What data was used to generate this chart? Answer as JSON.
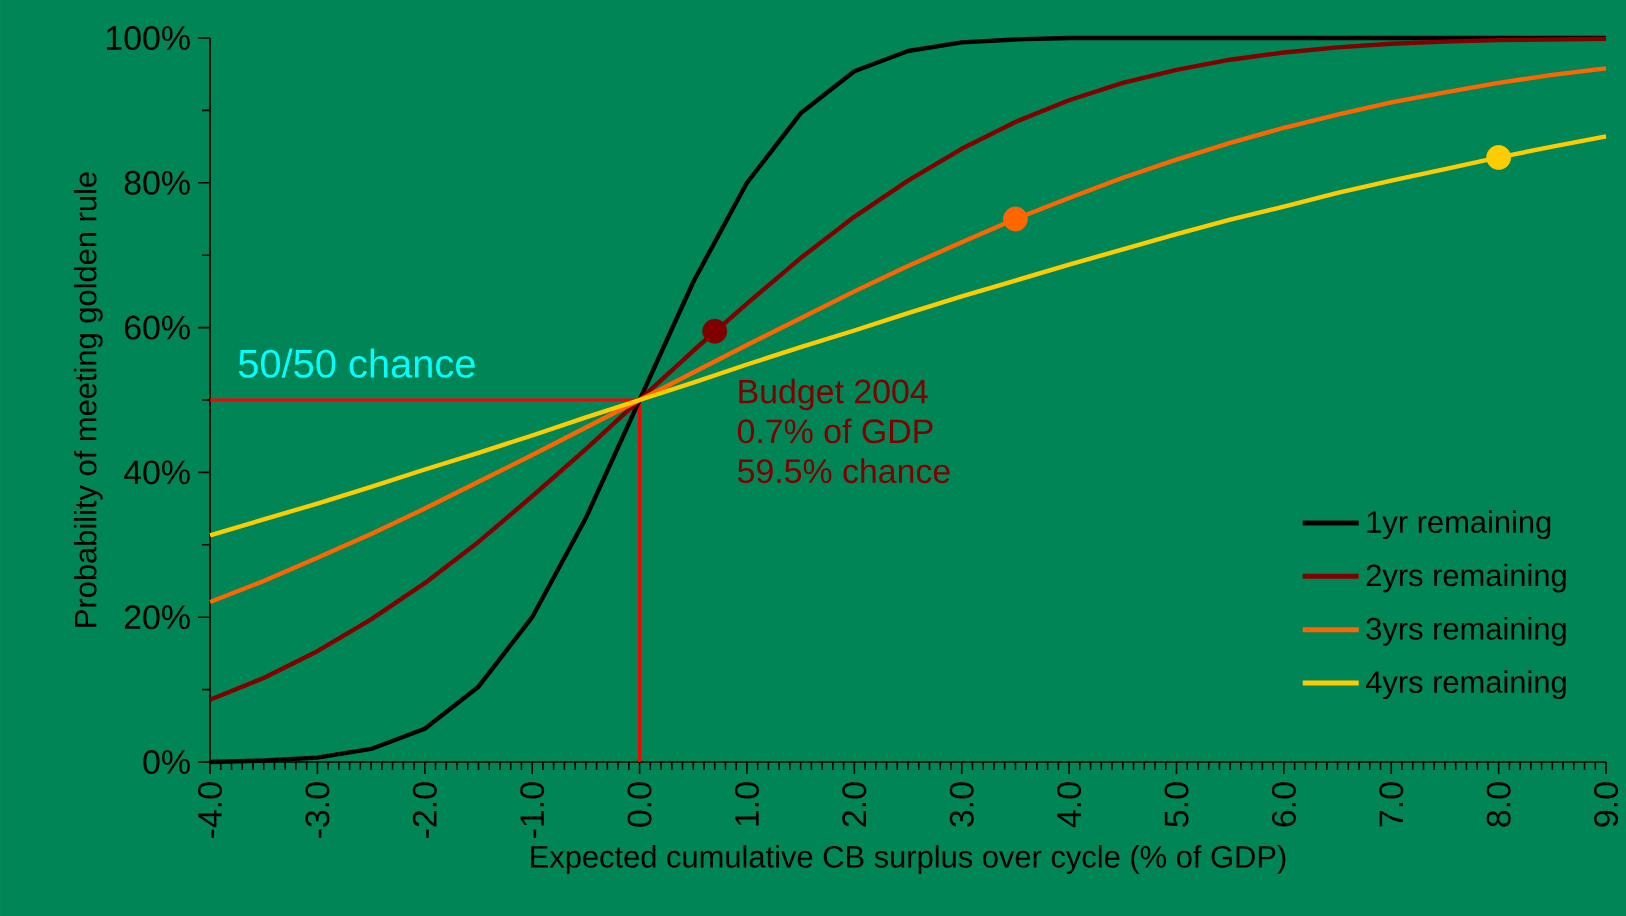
{
  "chart_data": {
    "type": "line",
    "xlabel": "Expected cumulative CB surplus over cycle (% of GDP)",
    "ylabel": "Probability of meeting golden rule",
    "x": [
      -4,
      -3.5,
      -3,
      -2.5,
      -2,
      -1.5,
      -1,
      -0.5,
      0,
      0.5,
      1,
      1.5,
      2,
      2.5,
      3,
      3.5,
      4,
      4.5,
      5,
      5.5,
      6,
      6.5,
      7,
      7.5,
      8,
      8.5,
      9
    ],
    "series": [
      {
        "name": "1yr remaining",
        "color": "#000000",
        "values": [
          0.0,
          0.2,
          0.6,
          1.8,
          4.6,
          10.4,
          20.0,
          33.7,
          50,
          66.3,
          80.0,
          89.6,
          95.4,
          98.2,
          99.4,
          99.8,
          100,
          100,
          100,
          100,
          100,
          100,
          100,
          100,
          100,
          100,
          100
        ]
      },
      {
        "name": "2yrs remaining",
        "color": "#800000",
        "values": [
          8.6,
          11.6,
          15.3,
          19.7,
          24.7,
          30.4,
          36.7,
          43.2,
          50,
          56.8,
          63.3,
          69.6,
          75.3,
          80.3,
          84.7,
          88.4,
          91.4,
          93.8,
          95.6,
          97.0,
          98.0,
          98.7,
          99.2,
          99.5,
          99.7,
          99.8,
          99.9
        ]
      },
      {
        "name": "3yrs remaining",
        "color": "#ff6600",
        "values": [
          22.1,
          25.0,
          28.2,
          31.5,
          35.0,
          38.7,
          42.4,
          46.2,
          50,
          53.8,
          57.6,
          61.3,
          65.0,
          68.5,
          71.8,
          75.0,
          77.9,
          80.7,
          83.2,
          85.5,
          87.6,
          89.4,
          91.1,
          92.5,
          93.8,
          94.9,
          95.8
        ]
      },
      {
        "name": "4yrs remaining",
        "color": "#ffcc00",
        "values": [
          31.3,
          33.5,
          35.7,
          38.0,
          40.4,
          42.7,
          45.1,
          47.6,
          50,
          52.4,
          54.9,
          57.3,
          59.6,
          62.0,
          64.3,
          66.5,
          68.7,
          70.8,
          72.9,
          74.9,
          76.7,
          78.6,
          80.3,
          81.9,
          83.5,
          85.0,
          86.4
        ]
      },
      {
        "type": "scatter",
        "marker": "circle",
        "x": [
          0.7,
          3.5,
          8
        ],
        "values": [
          59.5,
          75.0,
          83.5
        ],
        "colors": [
          "#800000",
          "#ff6600",
          "#ffcc00"
        ]
      }
    ],
    "xlim": [
      -4,
      9
    ],
    "xticks": [
      {
        "value": -4,
        "label": "-4.0"
      },
      {
        "value": -3,
        "label": "-3.0"
      },
      {
        "value": -2,
        "label": "-2.0"
      },
      {
        "value": -1,
        "label": "-1.0"
      },
      {
        "value": 0,
        "label": "0.0"
      },
      {
        "value": 1,
        "label": "1.0"
      },
      {
        "value": 2,
        "label": "2.0"
      },
      {
        "value": 3,
        "label": "3.0"
      },
      {
        "value": 4,
        "label": "4.0"
      },
      {
        "value": 5,
        "label": "5.0"
      },
      {
        "value": 6,
        "label": "6.0"
      },
      {
        "value": 7,
        "label": "7.0"
      },
      {
        "value": 8,
        "label": "8.0"
      },
      {
        "value": 9,
        "label": "9.0"
      }
    ],
    "ylim": [
      0,
      100
    ],
    "yticks": [
      {
        "value": 0,
        "label": "0%"
      },
      {
        "value": 20,
        "label": "20%"
      },
      {
        "value": 40,
        "label": "40%"
      },
      {
        "value": 60,
        "label": "60%"
      },
      {
        "value": 80,
        "label": "80%"
      },
      {
        "value": 100,
        "label": "100%"
      }
    ],
    "ref_lines": [
      {
        "axis": "y",
        "value": 50,
        "color": "#ff0000"
      },
      {
        "axis": "x",
        "value": 0,
        "color": "#ff0000"
      }
    ],
    "annotations": [
      "50/50 chance",
      "Budget 2004",
      "0.7% of GDP",
      "59.5% chance"
    ],
    "legend": "bottom right",
    "grid": false,
    "marker": "none",
    "line_style": "solid"
  }
}
